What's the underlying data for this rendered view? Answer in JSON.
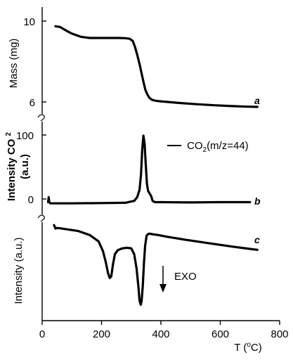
{
  "chart_data": {
    "type": "line",
    "x_axis": {
      "label_prefix": "T (",
      "label_sup": "o",
      "label_suffix": "C)",
      "range": [
        0,
        800
      ],
      "ticks": [
        "0",
        "200",
        "400",
        "600",
        "800"
      ]
    },
    "panels": [
      {
        "id": "mass",
        "ylabel": "Mass (mg)",
        "ylim": [
          5.6,
          10.3
        ],
        "yticks": [
          "10",
          "6"
        ],
        "curve_letter": "a",
        "series": [
          {
            "x": [
              45,
              60,
              80,
              100,
              130,
              160,
              190,
              230,
              260,
              280,
              295,
              305,
              312,
              320,
              328,
              335,
              342,
              348,
              355,
              362,
              370,
              380,
              395,
              420,
              460,
              520,
              580,
              640,
              690,
              725
            ],
            "y": [
              9.65,
              9.62,
              9.45,
              9.3,
              9.15,
              9.09,
              9.09,
              9.09,
              9.09,
              9.08,
              9.05,
              8.95,
              8.7,
              8.3,
              7.85,
              7.4,
              6.95,
              6.6,
              6.38,
              6.22,
              6.14,
              6.1,
              6.07,
              6.04,
              5.99,
              5.93,
              5.88,
              5.84,
              5.81,
              5.8
            ]
          }
        ]
      },
      {
        "id": "co2",
        "ylabel_line1_prefix": "Intensity CO",
        "ylabel_line1_sub": "2",
        "ylabel_line2": "(a.u.)",
        "ylim": [
          -12,
          125
        ],
        "yticks": [
          "100",
          "0"
        ],
        "curve_letter": "b",
        "legend_prefix": "CO",
        "legend_sub": "2",
        "legend_suffix": "(m/z=44)",
        "series": [
          {
            "x": [
              20,
              22,
              24,
              28,
              40,
              100,
              200,
              280,
              310,
              320,
              328,
              333,
              337,
              341,
              345,
              349,
              353,
              357,
              362,
              367,
              372,
              380,
              400,
              500,
              600,
              700
            ],
            "y": [
              0,
              8,
              0,
              -2,
              -2,
              -2,
              -1.5,
              -1,
              2,
              8,
              20,
              45,
              85,
              108,
              95,
              60,
              30,
              18,
              14,
              10,
              2,
              0,
              0,
              -0.5,
              0,
              0
            ]
          }
        ]
      },
      {
        "id": "dta",
        "ylabel": "Intensity (a.u.)",
        "ylim": [
          -14,
          1
        ],
        "yticks": [],
        "curve_letter": "c",
        "annotation": "EXO",
        "series": [
          {
            "x": [
              40,
              45,
              48,
              55,
              80,
              120,
              160,
              190,
              205,
              215,
              222,
              228,
              233,
              238,
              245,
              255,
              270,
              285,
              300,
              310,
              318,
              324,
              328,
              332,
              335,
              339,
              343,
              347,
              352,
              358,
              365,
              375,
              390,
              420,
              480,
              560,
              640,
              700,
              725
            ],
            "y": [
              0.5,
              -0.1,
              0,
              0,
              -0.2,
              -0.5,
              -1.2,
              -2.3,
              -4,
              -6,
              -7.8,
              -8.6,
              -8.3,
              -6.4,
              -4.5,
              -3.8,
              -3.5,
              -3.4,
              -3.5,
              -4.5,
              -7,
              -10,
              -12.5,
              -13.2,
              -12.6,
              -10,
              -6,
              -3,
              -1.3,
              -1.0,
              -1.0,
              -1.1,
              -1.2,
              -1.5,
              -2.0,
              -2.6,
              -3.2,
              -3.6,
              -3.75
            ]
          }
        ]
      }
    ]
  }
}
